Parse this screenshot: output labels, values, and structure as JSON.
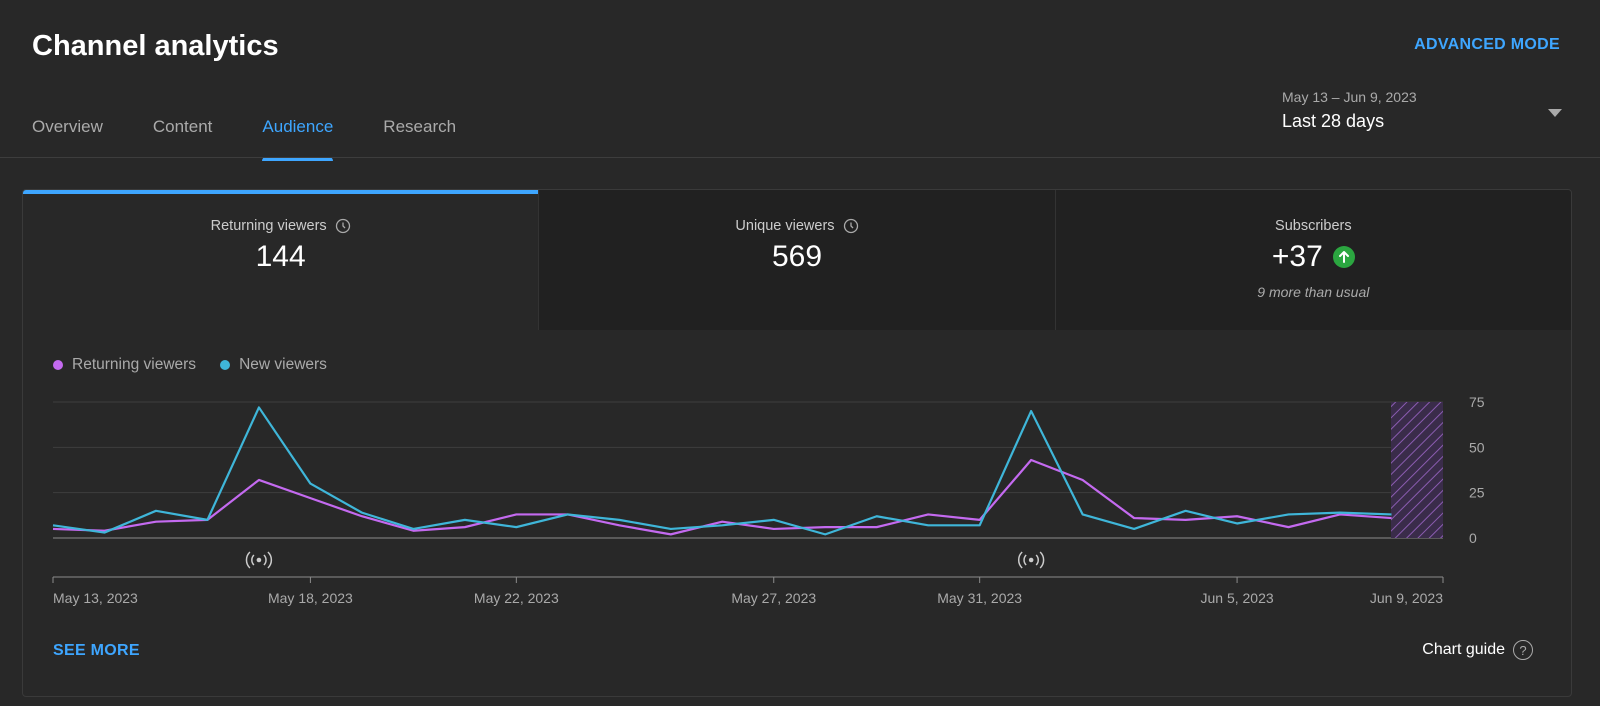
{
  "header": {
    "title": "Channel analytics",
    "advanced_mode": "ADVANCED MODE",
    "tabs": [
      {
        "label": "Overview",
        "active": false
      },
      {
        "label": "Content",
        "active": false
      },
      {
        "label": "Audience",
        "active": true
      },
      {
        "label": "Research",
        "active": false
      }
    ],
    "date_range": {
      "dates": "May 13 – Jun 9, 2023",
      "label": "Last 28 days"
    }
  },
  "metrics": [
    {
      "label": "Returning viewers",
      "value": "144",
      "has_clock": true,
      "active": true
    },
    {
      "label": "Unique viewers",
      "value": "569",
      "has_clock": true,
      "active": false
    },
    {
      "label": "Subscribers",
      "value": "+37",
      "note": "9 more than usual",
      "trend": "up",
      "active": false
    }
  ],
  "footer": {
    "see_more": "SEE MORE",
    "chart_guide": "Chart guide",
    "help_glyph": "?"
  },
  "colors": {
    "accent": "#3ea6ff",
    "returning": "#c46af0",
    "new": "#3fb6d9",
    "trend_up": "#2ba640"
  },
  "chart_data": {
    "type": "line",
    "x": [
      "May 13, 2023",
      "May 14, 2023",
      "May 15, 2023",
      "May 16, 2023",
      "May 17, 2023",
      "May 18, 2023",
      "May 19, 2023",
      "May 20, 2023",
      "May 21, 2023",
      "May 22, 2023",
      "May 23, 2023",
      "May 24, 2023",
      "May 25, 2023",
      "May 26, 2023",
      "May 27, 2023",
      "May 28, 2023",
      "May 29, 2023",
      "May 30, 2023",
      "May 31, 2023",
      "Jun 1, 2023",
      "Jun 2, 2023",
      "Jun 3, 2023",
      "Jun 4, 2023",
      "Jun 5, 2023",
      "Jun 6, 2023",
      "Jun 7, 2023",
      "Jun 8, 2023",
      "Jun 9, 2023"
    ],
    "series": [
      {
        "name": "Returning viewers",
        "color": "#c46af0",
        "values": [
          5,
          4,
          9,
          10,
          32,
          22,
          12,
          4,
          6,
          13,
          13,
          7,
          2,
          9,
          5,
          6,
          6,
          13,
          10,
          43,
          32,
          11,
          10,
          12,
          6,
          13,
          11,
          null
        ]
      },
      {
        "name": "New viewers",
        "color": "#3fb6d9",
        "values": [
          7,
          3,
          15,
          10,
          72,
          30,
          14,
          5,
          10,
          6,
          13,
          10,
          5,
          7,
          10,
          2,
          12,
          7,
          7,
          70,
          13,
          5,
          15,
          8,
          13,
          14,
          13,
          null
        ]
      }
    ],
    "ylim": [
      0,
      75
    ],
    "y_ticks": [
      "0",
      "25",
      "50",
      "75"
    ],
    "x_tick_labels": [
      {
        "index": 0,
        "label": "May 13, 2023"
      },
      {
        "index": 5,
        "label": "May 18, 2023"
      },
      {
        "index": 9,
        "label": "May 22, 2023"
      },
      {
        "index": 14,
        "label": "May 27, 2023"
      },
      {
        "index": 18,
        "label": "May 31, 2023"
      },
      {
        "index": 23,
        "label": "Jun 5, 2023"
      },
      {
        "index": 27,
        "label": "Jun 9, 2023"
      }
    ],
    "live_markers": [
      4,
      19
    ],
    "incomplete_last_day": true,
    "legend_position": "top-left",
    "grid": true
  }
}
